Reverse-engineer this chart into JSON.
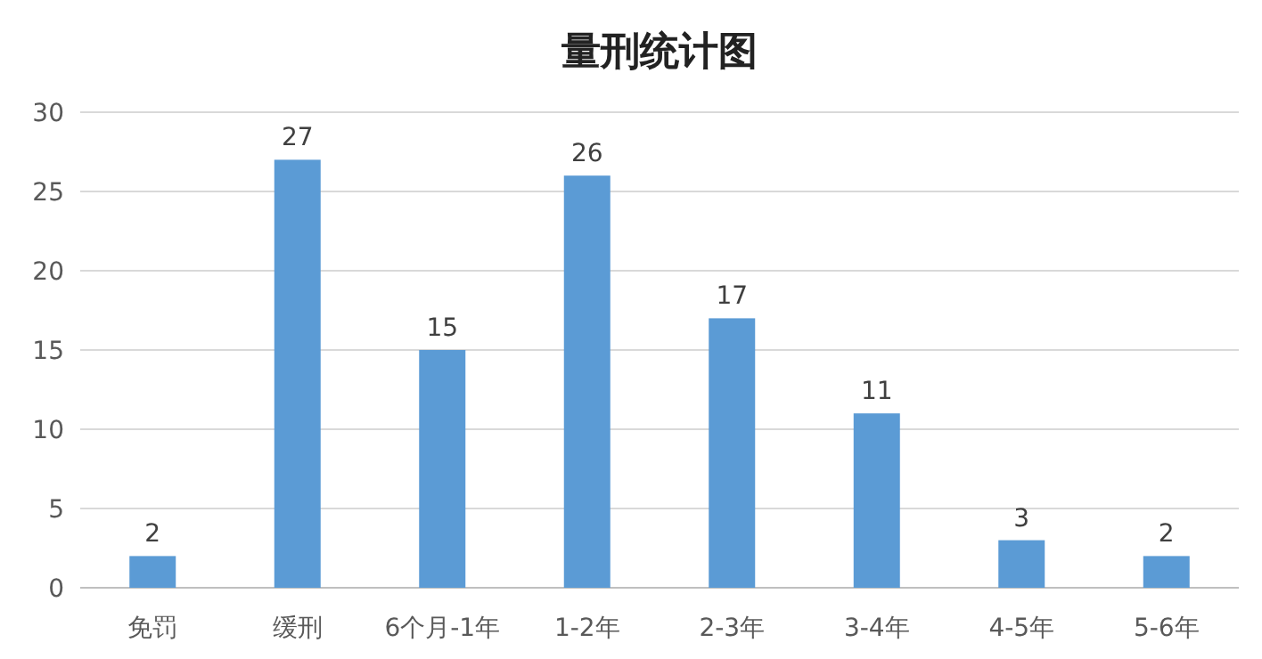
{
  "chart_data": {
    "type": "bar",
    "title": "量刑统计图",
    "categories": [
      "免罚",
      "缓刑",
      "6个月-1年",
      "1-2年",
      "2-3年",
      "3-4年",
      "4-5年",
      "5-6年"
    ],
    "values": [
      2,
      27,
      15,
      26,
      17,
      11,
      3,
      2
    ],
    "color": "#5b9bd5",
    "ylim": [
      0,
      30
    ],
    "yticks": [
      0,
      5,
      10,
      15,
      20,
      25,
      30
    ],
    "grid": "y",
    "data_labels": true
  }
}
